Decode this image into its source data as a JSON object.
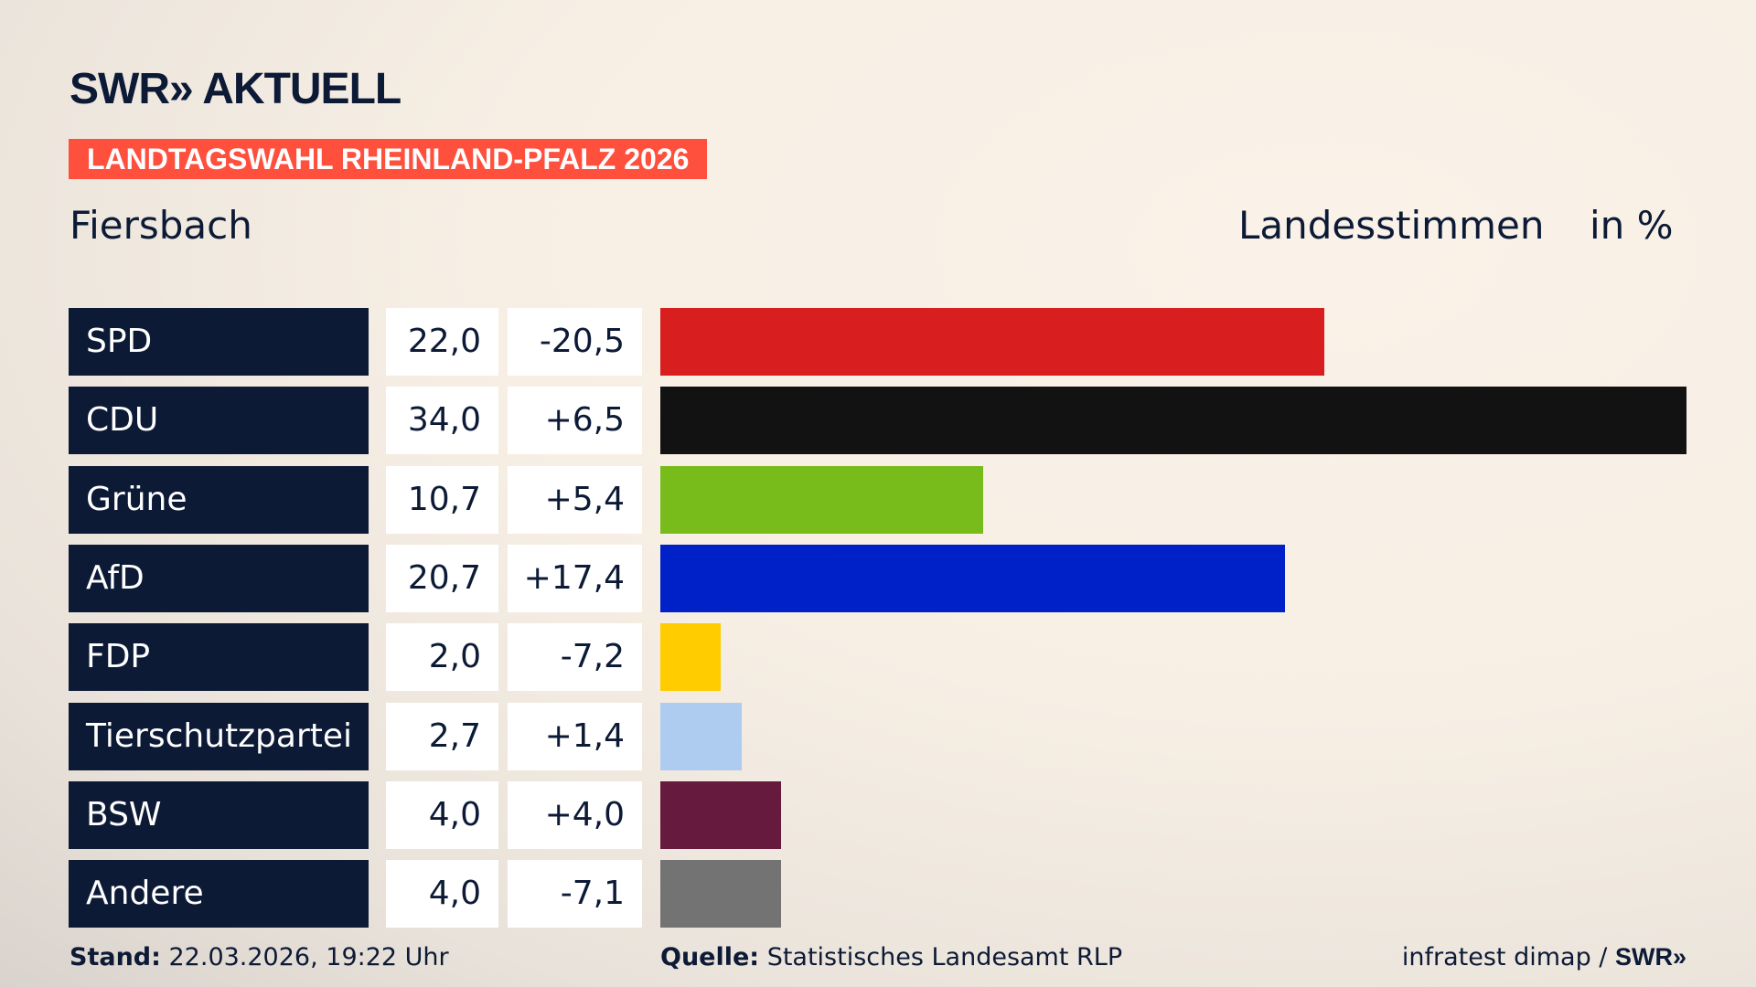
{
  "header": {
    "logo": "SWR» AKTUELL",
    "banner": "LANDTAGSWAHL RHEINLAND-PFALZ 2026",
    "place": "Fiersbach",
    "vote_type": "Landesstimmen",
    "unit": "in %"
  },
  "chart_data": {
    "type": "bar",
    "orientation": "horizontal",
    "categories": [
      "SPD",
      "CDU",
      "Grüne",
      "AfD",
      "FDP",
      "Tierschutzpartei",
      "BSW",
      "Andere"
    ],
    "values": [
      22.0,
      34.0,
      10.7,
      20.7,
      2.0,
      2.7,
      4.0,
      4.0
    ],
    "value_labels": [
      "22,0",
      "34,0",
      "10,7",
      "20,7",
      "2,0",
      "2,7",
      "4,0",
      "4,0"
    ],
    "change_labels": [
      "-20,5",
      "+6,5",
      "+5,4",
      "+17,4",
      "-7,2",
      "+1,4",
      "+4,0",
      "-7,1"
    ],
    "changes": [
      -20.5,
      6.5,
      5.4,
      17.4,
      -7.2,
      1.4,
      4.0,
      -7.1
    ],
    "colors": [
      "#d81e1e",
      "#121212",
      "#78bc1b",
      "#0021c8",
      "#ffcc00",
      "#aecbf0",
      "#661a3d",
      "#737373"
    ],
    "xlim": [
      0,
      34
    ],
    "grid": false
  },
  "footer": {
    "stand_label": "Stand:",
    "stand": " 22.03.2026, 19:22 Uhr",
    "source_label": "Quelle:",
    "source": " Statistisches Landesamt RLP",
    "credit": "infratest dimap / ",
    "credit_logo": "SWR»"
  }
}
